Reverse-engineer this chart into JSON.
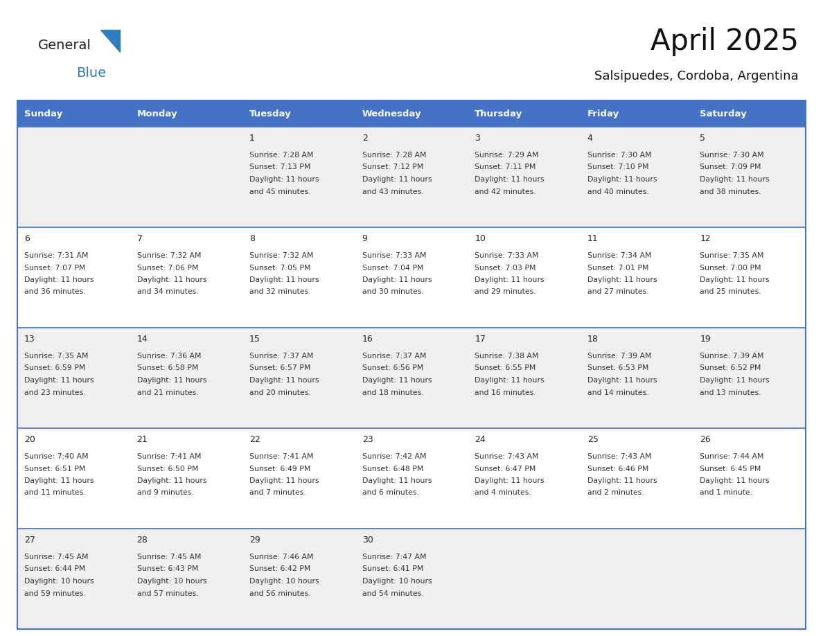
{
  "title": "April 2025",
  "subtitle": "Salsipuedes, Cordoba, Argentina",
  "days_of_week": [
    "Sunday",
    "Monday",
    "Tuesday",
    "Wednesday",
    "Thursday",
    "Friday",
    "Saturday"
  ],
  "header_bg": "#4472C4",
  "header_text": "#FFFFFF",
  "cell_bg_odd": "#EFEFEF",
  "cell_bg_even": "#FFFFFF",
  "cell_border_color": "#4472C4",
  "day_num_color": "#222222",
  "text_color": "#333333",
  "title_color": "#111111",
  "logo_general_color": "#222222",
  "logo_blue_color": "#2E7EC2",
  "weeks": [
    {
      "days": [
        {
          "date": "",
          "sunrise": "",
          "sunset": "",
          "daylight": ""
        },
        {
          "date": "",
          "sunrise": "",
          "sunset": "",
          "daylight": ""
        },
        {
          "date": "1",
          "sunrise": "7:28 AM",
          "sunset": "7:13 PM",
          "daylight": "11 hours\nand 45 minutes."
        },
        {
          "date": "2",
          "sunrise": "7:28 AM",
          "sunset": "7:12 PM",
          "daylight": "11 hours\nand 43 minutes."
        },
        {
          "date": "3",
          "sunrise": "7:29 AM",
          "sunset": "7:11 PM",
          "daylight": "11 hours\nand 42 minutes."
        },
        {
          "date": "4",
          "sunrise": "7:30 AM",
          "sunset": "7:10 PM",
          "daylight": "11 hours\nand 40 minutes."
        },
        {
          "date": "5",
          "sunrise": "7:30 AM",
          "sunset": "7:09 PM",
          "daylight": "11 hours\nand 38 minutes."
        }
      ]
    },
    {
      "days": [
        {
          "date": "6",
          "sunrise": "7:31 AM",
          "sunset": "7:07 PM",
          "daylight": "11 hours\nand 36 minutes."
        },
        {
          "date": "7",
          "sunrise": "7:32 AM",
          "sunset": "7:06 PM",
          "daylight": "11 hours\nand 34 minutes."
        },
        {
          "date": "8",
          "sunrise": "7:32 AM",
          "sunset": "7:05 PM",
          "daylight": "11 hours\nand 32 minutes."
        },
        {
          "date": "9",
          "sunrise": "7:33 AM",
          "sunset": "7:04 PM",
          "daylight": "11 hours\nand 30 minutes."
        },
        {
          "date": "10",
          "sunrise": "7:33 AM",
          "sunset": "7:03 PM",
          "daylight": "11 hours\nand 29 minutes."
        },
        {
          "date": "11",
          "sunrise": "7:34 AM",
          "sunset": "7:01 PM",
          "daylight": "11 hours\nand 27 minutes."
        },
        {
          "date": "12",
          "sunrise": "7:35 AM",
          "sunset": "7:00 PM",
          "daylight": "11 hours\nand 25 minutes."
        }
      ]
    },
    {
      "days": [
        {
          "date": "13",
          "sunrise": "7:35 AM",
          "sunset": "6:59 PM",
          "daylight": "11 hours\nand 23 minutes."
        },
        {
          "date": "14",
          "sunrise": "7:36 AM",
          "sunset": "6:58 PM",
          "daylight": "11 hours\nand 21 minutes."
        },
        {
          "date": "15",
          "sunrise": "7:37 AM",
          "sunset": "6:57 PM",
          "daylight": "11 hours\nand 20 minutes."
        },
        {
          "date": "16",
          "sunrise": "7:37 AM",
          "sunset": "6:56 PM",
          "daylight": "11 hours\nand 18 minutes."
        },
        {
          "date": "17",
          "sunrise": "7:38 AM",
          "sunset": "6:55 PM",
          "daylight": "11 hours\nand 16 minutes."
        },
        {
          "date": "18",
          "sunrise": "7:39 AM",
          "sunset": "6:53 PM",
          "daylight": "11 hours\nand 14 minutes."
        },
        {
          "date": "19",
          "sunrise": "7:39 AM",
          "sunset": "6:52 PM",
          "daylight": "11 hours\nand 13 minutes."
        }
      ]
    },
    {
      "days": [
        {
          "date": "20",
          "sunrise": "7:40 AM",
          "sunset": "6:51 PM",
          "daylight": "11 hours\nand 11 minutes."
        },
        {
          "date": "21",
          "sunrise": "7:41 AM",
          "sunset": "6:50 PM",
          "daylight": "11 hours\nand 9 minutes."
        },
        {
          "date": "22",
          "sunrise": "7:41 AM",
          "sunset": "6:49 PM",
          "daylight": "11 hours\nand 7 minutes."
        },
        {
          "date": "23",
          "sunrise": "7:42 AM",
          "sunset": "6:48 PM",
          "daylight": "11 hours\nand 6 minutes."
        },
        {
          "date": "24",
          "sunrise": "7:43 AM",
          "sunset": "6:47 PM",
          "daylight": "11 hours\nand 4 minutes."
        },
        {
          "date": "25",
          "sunrise": "7:43 AM",
          "sunset": "6:46 PM",
          "daylight": "11 hours\nand 2 minutes."
        },
        {
          "date": "26",
          "sunrise": "7:44 AM",
          "sunset": "6:45 PM",
          "daylight": "11 hours\nand 1 minute."
        }
      ]
    },
    {
      "days": [
        {
          "date": "27",
          "sunrise": "7:45 AM",
          "sunset": "6:44 PM",
          "daylight": "10 hours\nand 59 minutes."
        },
        {
          "date": "28",
          "sunrise": "7:45 AM",
          "sunset": "6:43 PM",
          "daylight": "10 hours\nand 57 minutes."
        },
        {
          "date": "29",
          "sunrise": "7:46 AM",
          "sunset": "6:42 PM",
          "daylight": "10 hours\nand 56 minutes."
        },
        {
          "date": "30",
          "sunrise": "7:47 AM",
          "sunset": "6:41 PM",
          "daylight": "10 hours\nand 54 minutes."
        },
        {
          "date": "",
          "sunrise": "",
          "sunset": "",
          "daylight": ""
        },
        {
          "date": "",
          "sunrise": "",
          "sunset": "",
          "daylight": ""
        },
        {
          "date": "",
          "sunrise": "",
          "sunset": "",
          "daylight": ""
        }
      ]
    }
  ]
}
